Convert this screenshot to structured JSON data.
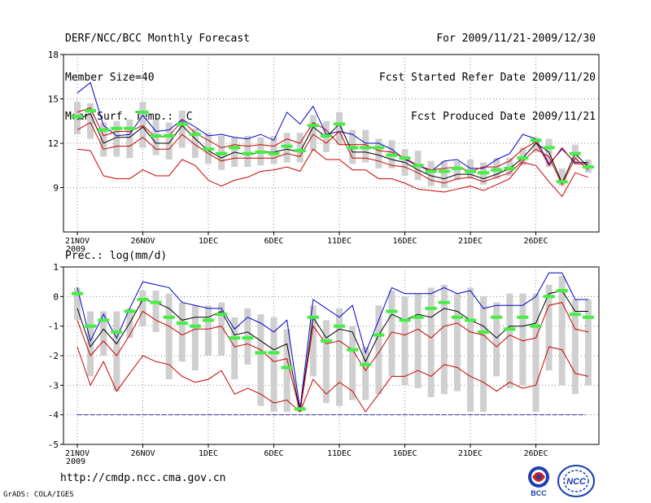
{
  "header": {
    "left_lines": [
      "DERF/NCC/BCC Monthly Forecast",
      "Member Size=40",
      "Mean Surf. Temp.: °C"
    ],
    "right_lines": [
      "For 2009/11/21-2009/12/30",
      "Fcst Started Refer Date 2009/11/20",
      "Fcst Produced Date 2009/11/21"
    ]
  },
  "footer": {
    "url": "http://cmdp.ncc.cma.gov.cn",
    "credit": "GrADS: COLA/IGES"
  },
  "logos": {
    "bcc_text": "BCC",
    "ncc_text": "NCC"
  },
  "colors": {
    "ensemble_max": "#0000cc",
    "ensemble_min": "#cc0000",
    "ensemble_mean": "#000000",
    "member_mode": "#44ee44",
    "spread_bar": "#cfcfcf",
    "reference_line": "#3333aa",
    "grid": "#888888"
  },
  "chart_data": [
    {
      "type": "line",
      "title": "Mean Surf. Temp.: °C",
      "x_tick_labels": [
        "21NOV\n2009",
        "26NOV",
        "1DEC",
        "6DEC",
        "11DEC",
        "16DEC",
        "21DEC",
        "26DEC"
      ],
      "x_tick_days": [
        1,
        6,
        11,
        16,
        21,
        26,
        31,
        36
      ],
      "ylim": [
        6,
        18
      ],
      "y_ticks": [
        9,
        12,
        15,
        18
      ],
      "days": [
        1,
        2,
        3,
        4,
        5,
        6,
        7,
        8,
        9,
        10,
        11,
        12,
        13,
        14,
        15,
        16,
        17,
        18,
        19,
        20,
        21,
        22,
        23,
        24,
        25,
        26,
        27,
        28,
        29,
        30,
        31,
        32,
        33,
        34,
        35,
        36,
        37,
        38,
        39,
        40
      ],
      "series": [
        {
          "name": "max",
          "values": [
            15.4,
            16.1,
            13.2,
            12.5,
            12.6,
            13.9,
            12.8,
            12.9,
            13.6,
            13.1,
            12.5,
            12.6,
            12.4,
            12.3,
            12.6,
            12.2,
            14.1,
            13.3,
            14.5,
            12.6,
            12.8,
            12.6,
            12.0,
            12.0,
            11.6,
            10.9,
            10.5,
            10.1,
            10.8,
            10.9,
            10.3,
            10.3,
            10.9,
            11.3,
            12.6,
            12.3,
            10.6,
            11.6,
            10.7,
            10.7
          ]
        },
        {
          "name": "q_upper",
          "values": [
            14.1,
            14.4,
            12.5,
            12.8,
            12.8,
            13.2,
            12.4,
            12.5,
            13.5,
            12.7,
            12.2,
            11.7,
            11.9,
            11.8,
            11.9,
            11.8,
            12.3,
            12.0,
            13.4,
            12.9,
            11.9,
            11.9,
            11.9,
            11.5,
            11.4,
            11.0,
            10.5,
            10.2,
            10.3,
            10.4,
            10.1,
            10.4,
            10.4,
            10.8,
            11.6,
            12.1,
            10.5,
            11.7,
            10.6,
            10.6
          ]
        },
        {
          "name": "mean",
          "values": [
            13.6,
            14.0,
            12.0,
            12.4,
            12.4,
            13.1,
            12.0,
            12.0,
            13.2,
            12.3,
            11.5,
            11.0,
            11.4,
            11.2,
            11.4,
            11.4,
            11.6,
            11.4,
            13.1,
            12.4,
            13.3,
            11.4,
            11.4,
            11.2,
            10.9,
            10.7,
            10.2,
            9.8,
            9.6,
            9.9,
            9.9,
            9.6,
            9.9,
            10.3,
            11.0,
            12.0,
            11.4,
            9.3,
            11.3,
            10.4
          ]
        },
        {
          "name": "q_lower",
          "values": [
            12.9,
            13.4,
            11.6,
            11.8,
            11.8,
            12.4,
            11.6,
            11.6,
            12.6,
            11.9,
            11.3,
            10.8,
            11.0,
            11.0,
            11.0,
            11.0,
            11.3,
            11.1,
            12.6,
            12.0,
            12.8,
            11.0,
            11.0,
            10.8,
            10.5,
            10.4,
            10.0,
            9.5,
            9.3,
            9.6,
            9.7,
            9.4,
            9.7,
            10.0,
            10.8,
            11.6,
            11.1,
            9.2,
            11.0,
            10.2
          ]
        },
        {
          "name": "min",
          "values": [
            11.6,
            11.5,
            9.8,
            9.6,
            9.6,
            10.2,
            9.8,
            9.8,
            10.9,
            10.5,
            9.5,
            9.1,
            9.5,
            9.7,
            10.1,
            10.2,
            10.4,
            10.1,
            11.6,
            10.9,
            10.9,
            10.2,
            10.2,
            9.6,
            9.6,
            9.3,
            8.9,
            8.8,
            8.7,
            8.9,
            9.1,
            8.8,
            9.2,
            9.6,
            10.7,
            10.5,
            9.4,
            8.4,
            10.0,
            9.7
          ]
        },
        {
          "name": "mode",
          "values": [
            13.8,
            14.2,
            12.9,
            13.0,
            13.0,
            14.1,
            12.5,
            12.5,
            13.3,
            12.6,
            11.6,
            11.3,
            11.7,
            11.3,
            11.4,
            11.3,
            11.8,
            11.5,
            13.2,
            12.5,
            13.3,
            11.7,
            11.7,
            11.7,
            11.2,
            11.0,
            10.5,
            10.1,
            10.1,
            10.3,
            10.1,
            10.0,
            10.2,
            10.3,
            11.0,
            12.2,
            11.7,
            9.4,
            11.3,
            10.4
          ]
        }
      ],
      "spread_bars": {
        "upper": [
          14.8,
          14.7,
          13.4,
          13.5,
          13.6,
          14.8,
          13.6,
          13.4,
          14.2,
          13.0,
          12.7,
          12.5,
          12.4,
          12.5,
          12.4,
          12.5,
          12.7,
          12.7,
          13.9,
          13.5,
          14.1,
          12.9,
          12.9,
          12.3,
          12.2,
          11.6,
          11.5,
          10.8,
          10.8,
          10.8,
          10.9,
          10.7,
          11.0,
          11.0,
          11.7,
          12.4,
          12.3,
          10.3,
          11.9,
          10.9
        ],
        "lower": [
          12.6,
          12.3,
          11.1,
          11.1,
          11.0,
          11.7,
          11.2,
          10.9,
          11.7,
          11.0,
          10.6,
          10.2,
          10.4,
          10.4,
          10.5,
          10.6,
          10.7,
          10.7,
          11.5,
          11.4,
          11.9,
          10.6,
          10.7,
          10.3,
          10.3,
          9.8,
          9.5,
          9.1,
          9.0,
          9.5,
          9.6,
          9.2,
          9.6,
          9.8,
          10.5,
          11.4,
          10.4,
          9.1,
          10.6,
          10.0
        ]
      }
    },
    {
      "type": "line",
      "title": "Prec.: log(mm/d)",
      "x_tick_labels": [
        "21NOV\n2009",
        "26NOV",
        "1DEC",
        "6DEC",
        "11DEC",
        "16DEC",
        "21DEC",
        "26DEC"
      ],
      "x_tick_days": [
        1,
        6,
        11,
        16,
        21,
        26,
        31,
        36
      ],
      "ylim": [
        -5,
        1
      ],
      "y_ticks": [
        -5,
        -4,
        -3,
        -2,
        -1,
        0,
        1
      ],
      "reference_line": -4,
      "days": [
        1,
        2,
        3,
        4,
        5,
        6,
        7,
        8,
        9,
        10,
        11,
        12,
        13,
        14,
        15,
        16,
        17,
        18,
        19,
        20,
        21,
        22,
        23,
        24,
        25,
        26,
        27,
        28,
        29,
        30,
        31,
        32,
        33,
        34,
        35,
        36,
        37,
        38,
        39,
        40
      ],
      "series": [
        {
          "name": "max",
          "values": [
            0.3,
            -1.5,
            -0.6,
            -1.4,
            -0.4,
            0.5,
            0.4,
            0.3,
            -0.2,
            -0.3,
            -0.4,
            -0.4,
            -1.1,
            -0.7,
            -0.9,
            -1.2,
            -0.8,
            -3.8,
            -0.1,
            -0.4,
            -0.7,
            -0.3,
            -1.9,
            -0.8,
            0.3,
            0.1,
            0.1,
            0.1,
            0.3,
            0.1,
            0.2,
            -0.4,
            -0.3,
            -0.3,
            -0.3,
            0.0,
            0.8,
            0.8,
            -0.1,
            -0.1
          ]
        },
        {
          "name": "mean",
          "values": [
            -0.4,
            -1.7,
            -1.1,
            -1.6,
            -0.9,
            -0.1,
            -0.2,
            -0.4,
            -0.8,
            -0.7,
            -0.7,
            -0.5,
            -1.3,
            -1.2,
            -1.5,
            -1.8,
            -1.6,
            -3.9,
            -0.7,
            -1.4,
            -1.1,
            -1.2,
            -2.2,
            -1.3,
            -0.6,
            -0.8,
            -0.6,
            -0.7,
            -0.4,
            -0.5,
            -0.8,
            -1.0,
            -1.4,
            -1.0,
            -1.0,
            -0.9,
            0.1,
            0.2,
            -0.5,
            -0.5
          ]
        },
        {
          "name": "q_lower",
          "values": [
            -0.8,
            -2.0,
            -1.5,
            -2.0,
            -1.3,
            -0.5,
            -0.8,
            -1.0,
            -1.3,
            -1.1,
            -1.1,
            -1.0,
            -1.7,
            -1.6,
            -1.8,
            -2.2,
            -2.1,
            -3.9,
            -1.0,
            -1.6,
            -1.5,
            -1.8,
            -2.5,
            -1.9,
            -1.2,
            -1.3,
            -1.1,
            -1.4,
            -1.0,
            -0.9,
            -1.2,
            -1.3,
            -1.7,
            -1.3,
            -1.5,
            -1.4,
            -0.3,
            -0.2,
            -1.1,
            -1.2
          ]
        },
        {
          "name": "min",
          "values": [
            -1.7,
            -3.0,
            -2.2,
            -3.2,
            -2.6,
            -2.0,
            -2.2,
            -2.3,
            -2.7,
            -2.9,
            -2.8,
            -2.5,
            -3.3,
            -3.1,
            -3.3,
            -3.6,
            -3.5,
            -3.9,
            -2.8,
            -3.3,
            -2.9,
            -3.2,
            -3.9,
            -3.3,
            -2.7,
            -2.7,
            -2.5,
            -2.7,
            -2.3,
            -2.4,
            -2.7,
            -2.9,
            -3.2,
            -2.9,
            -3.1,
            -3.0,
            -1.7,
            -1.8,
            -2.6,
            -2.7
          ]
        },
        {
          "name": "mode",
          "values": [
            0.1,
            -1.0,
            -0.8,
            -1.2,
            -0.5,
            -0.1,
            -0.2,
            -0.7,
            -0.9,
            -1.0,
            -0.8,
            -0.6,
            -1.4,
            -1.4,
            -1.9,
            -1.9,
            -2.4,
            -3.8,
            -0.7,
            -1.5,
            -1.0,
            -1.8,
            -2.3,
            -1.3,
            -0.5,
            -0.8,
            -0.7,
            -0.4,
            -0.2,
            -0.7,
            -0.8,
            -1.2,
            -0.7,
            -1.1,
            -0.7,
            -1.0,
            0.0,
            0.2,
            -0.6,
            -0.7
          ]
        }
      ],
      "spread_bars": {
        "upper": [
          0.3,
          -0.5,
          -0.5,
          -0.5,
          -0.4,
          0.2,
          0.2,
          0.1,
          -0.2,
          -0.3,
          -0.3,
          -0.2,
          -0.7,
          -0.4,
          -0.6,
          -0.7,
          -1.1,
          -3.6,
          -0.3,
          -0.8,
          -0.4,
          -1.0,
          -1.7,
          -0.3,
          0.2,
          0.0,
          0.1,
          0.3,
          0.4,
          0.1,
          0.3,
          0.0,
          -0.2,
          0.1,
          0.1,
          0.1,
          0.4,
          0.7,
          -0.1,
          -0.1
        ],
        "lower": [
          -0.8,
          -2.7,
          -2.0,
          -3.2,
          -1.4,
          -1.0,
          -1.2,
          -2.8,
          -2.2,
          -2.5,
          -2.0,
          -2.0,
          -2.8,
          -2.3,
          -3.7,
          -3.9,
          -3.9,
          -3.9,
          -2.7,
          -3.6,
          -3.7,
          -3.5,
          -3.5,
          -3.3,
          -2.7,
          -3.0,
          -3.1,
          -3.4,
          -3.3,
          -3.2,
          -3.9,
          -3.9,
          -2.7,
          -3.1,
          -3.0,
          -3.9,
          -2.5,
          -3.0,
          -3.3,
          -3.0
        ]
      }
    }
  ]
}
